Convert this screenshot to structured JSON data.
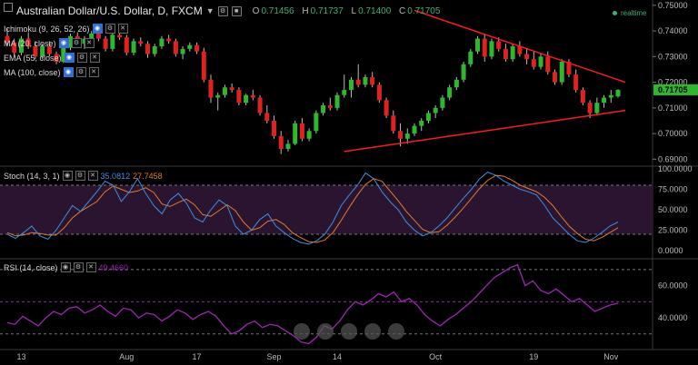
{
  "header": {
    "symbol_title": "Australian Dollar/U.S. Dollar, D, FXCM",
    "open_label": "O",
    "open": "0.71456",
    "high_label": "H",
    "high": "0.71737",
    "low_label": "L",
    "low": "0.71400",
    "close_label": "C",
    "close": "0.71705",
    "realtime": "realtime"
  },
  "indicators": {
    "ichimoku": "Ichimoku (9, 26, 52, 26)",
    "ma20": "MA (20, close)",
    "ema55": "EMA (55, close)",
    "ma100": "MA (100, close)"
  },
  "price_axis": {
    "ticks": [
      "0.75000",
      "0.74000",
      "0.73000",
      "0.72000",
      "0.71000",
      "0.70000",
      "0.69000"
    ],
    "last_price": "0.71705"
  },
  "stoch": {
    "label": "Stoch (14, 3, 1)",
    "k": "35.0812",
    "d": "27.7458",
    "ticks": [
      "100.0000",
      "75.0000",
      "50.0000",
      "25.0000",
      "0.0000"
    ]
  },
  "rsi": {
    "label": "RSI (14, close)",
    "value": "49.4660",
    "ticks": [
      "60.0000",
      "40.0000"
    ]
  },
  "time_axis": [
    "13",
    "Aug",
    "17",
    "Sep",
    "14",
    "Oct",
    "19",
    "Nov"
  ],
  "colors": {
    "up": "#2db82d",
    "down": "#e0221f",
    "trendline": "#ff1a1a",
    "stoch_k": "#3e8ee0",
    "stoch_d": "#e07b2a",
    "rsi": "#9c27b0",
    "stoch_band": "#2a1430"
  },
  "chart_data": {
    "type": "candlestick",
    "title": "Australian Dollar/U.S. Dollar, D, FXCM",
    "ylim": [
      0.688,
      0.751
    ],
    "candles": [
      [
        0.738,
        0.741,
        0.734,
        0.7355
      ],
      [
        0.7355,
        0.737,
        0.73,
        0.7315
      ],
      [
        0.7315,
        0.738,
        0.7305,
        0.737
      ],
      [
        0.737,
        0.7395,
        0.733,
        0.734
      ],
      [
        0.734,
        0.736,
        0.729,
        0.73
      ],
      [
        0.73,
        0.735,
        0.729,
        0.734
      ],
      [
        0.734,
        0.736,
        0.73,
        0.731
      ],
      [
        0.731,
        0.732,
        0.727,
        0.728
      ],
      [
        0.728,
        0.7345,
        0.7275,
        0.7335
      ],
      [
        0.7335,
        0.739,
        0.7325,
        0.738
      ],
      [
        0.738,
        0.7395,
        0.734,
        0.735
      ],
      [
        0.735,
        0.738,
        0.733,
        0.737
      ],
      [
        0.737,
        0.74,
        0.735,
        0.739
      ],
      [
        0.739,
        0.74,
        0.736,
        0.737
      ],
      [
        0.737,
        0.738,
        0.732,
        0.733
      ],
      [
        0.733,
        0.739,
        0.732,
        0.7385
      ],
      [
        0.7385,
        0.74,
        0.7365,
        0.7375
      ],
      [
        0.7375,
        0.7385,
        0.7305,
        0.7315
      ],
      [
        0.7315,
        0.737,
        0.7305,
        0.736
      ],
      [
        0.736,
        0.7375,
        0.734,
        0.735
      ],
      [
        0.735,
        0.736,
        0.7295,
        0.731
      ],
      [
        0.731,
        0.735,
        0.73,
        0.734
      ],
      [
        0.734,
        0.738,
        0.733,
        0.737
      ],
      [
        0.737,
        0.7385,
        0.735,
        0.736
      ],
      [
        0.736,
        0.737,
        0.73,
        0.731
      ],
      [
        0.731,
        0.734,
        0.729,
        0.733
      ],
      [
        0.733,
        0.7355,
        0.732,
        0.7345
      ],
      [
        0.7345,
        0.7355,
        0.731,
        0.732
      ],
      [
        0.732,
        0.7335,
        0.72,
        0.721
      ],
      [
        0.721,
        0.723,
        0.712,
        0.714
      ],
      [
        0.714,
        0.716,
        0.709,
        0.715
      ],
      [
        0.715,
        0.719,
        0.714,
        0.718
      ],
      [
        0.718,
        0.7195,
        0.716,
        0.717
      ],
      [
        0.717,
        0.718,
        0.711,
        0.712
      ],
      [
        0.712,
        0.7155,
        0.711,
        0.715
      ],
      [
        0.715,
        0.717,
        0.713,
        0.714
      ],
      [
        0.714,
        0.715,
        0.707,
        0.708
      ],
      [
        0.708,
        0.711,
        0.704,
        0.705
      ],
      [
        0.705,
        0.707,
        0.698,
        0.699
      ],
      [
        0.699,
        0.701,
        0.692,
        0.694
      ],
      [
        0.694,
        0.6975,
        0.693,
        0.696
      ],
      [
        0.696,
        0.705,
        0.6955,
        0.704
      ],
      [
        0.704,
        0.706,
        0.697,
        0.698
      ],
      [
        0.698,
        0.702,
        0.697,
        0.701
      ],
      [
        0.701,
        0.709,
        0.7,
        0.708
      ],
      [
        0.708,
        0.712,
        0.707,
        0.711
      ],
      [
        0.711,
        0.714,
        0.709,
        0.71
      ],
      [
        0.71,
        0.716,
        0.709,
        0.715
      ],
      [
        0.715,
        0.723,
        0.714,
        0.717
      ],
      [
        0.717,
        0.722,
        0.714,
        0.721
      ],
      [
        0.721,
        0.727,
        0.718,
        0.719
      ],
      [
        0.719,
        0.723,
        0.718,
        0.722
      ],
      [
        0.722,
        0.724,
        0.718,
        0.719
      ],
      [
        0.719,
        0.72,
        0.712,
        0.713
      ],
      [
        0.713,
        0.714,
        0.706,
        0.707
      ],
      [
        0.707,
        0.709,
        0.7,
        0.701
      ],
      [
        0.701,
        0.704,
        0.695,
        0.698
      ],
      [
        0.698,
        0.702,
        0.696,
        0.7
      ],
      [
        0.7,
        0.704,
        0.699,
        0.703
      ],
      [
        0.703,
        0.706,
        0.701,
        0.705
      ],
      [
        0.705,
        0.709,
        0.704,
        0.708
      ],
      [
        0.708,
        0.711,
        0.706,
        0.71
      ],
      [
        0.71,
        0.715,
        0.709,
        0.714
      ],
      [
        0.714,
        0.719,
        0.713,
        0.718
      ],
      [
        0.718,
        0.722,
        0.717,
        0.721
      ],
      [
        0.721,
        0.728,
        0.72,
        0.727
      ],
      [
        0.727,
        0.733,
        0.726,
        0.732
      ],
      [
        0.732,
        0.738,
        0.731,
        0.737
      ],
      [
        0.737,
        0.739,
        0.728,
        0.73
      ],
      [
        0.73,
        0.737,
        0.729,
        0.736
      ],
      [
        0.736,
        0.7375,
        0.732,
        0.733
      ],
      [
        0.733,
        0.735,
        0.728,
        0.729
      ],
      [
        0.729,
        0.735,
        0.728,
        0.734
      ],
      [
        0.734,
        0.736,
        0.73,
        0.731
      ],
      [
        0.731,
        0.733,
        0.727,
        0.729
      ],
      [
        0.729,
        0.732,
        0.725,
        0.726
      ],
      [
        0.726,
        0.731,
        0.725,
        0.73
      ],
      [
        0.73,
        0.732,
        0.723,
        0.724
      ],
      [
        0.724,
        0.725,
        0.719,
        0.72
      ],
      [
        0.72,
        0.729,
        0.719,
        0.728
      ],
      [
        0.728,
        0.729,
        0.722,
        0.723
      ],
      [
        0.723,
        0.725,
        0.716,
        0.717
      ],
      [
        0.717,
        0.718,
        0.711,
        0.712
      ],
      [
        0.712,
        0.713,
        0.706,
        0.708
      ],
      [
        0.708,
        0.714,
        0.707,
        0.712
      ],
      [
        0.712,
        0.715,
        0.71,
        0.714
      ],
      [
        0.714,
        0.717,
        0.712,
        0.715
      ],
      [
        0.7145,
        0.7173,
        0.714,
        0.717
      ]
    ],
    "trendlines": [
      {
        "from": [
          48,
          0.693
        ],
        "to": [
          87,
          0.709
        ]
      },
      {
        "from": [
          58,
          0.748
        ],
        "to": [
          87,
          0.72
        ]
      }
    ],
    "stoch_k": [
      20,
      15,
      22,
      30,
      18,
      14,
      25,
      40,
      55,
      48,
      60,
      72,
      85,
      80,
      60,
      72,
      88,
      70,
      55,
      45,
      62,
      70,
      58,
      40,
      35,
      50,
      62,
      55,
      30,
      20,
      25,
      38,
      45,
      30,
      22,
      15,
      10,
      8,
      12,
      20,
      35,
      55,
      68,
      80,
      95,
      88,
      72,
      60,
      50,
      35,
      25,
      18,
      22,
      30,
      40,
      52,
      64,
      75,
      88,
      96,
      92,
      85,
      80,
      75,
      72,
      68,
      55,
      40,
      30,
      20,
      12,
      10,
      15,
      22,
      30,
      35
    ],
    "stoch_d": [
      22,
      18,
      19,
      22,
      21,
      19,
      19,
      28,
      40,
      48,
      54,
      60,
      72,
      79,
      75,
      71,
      73,
      77,
      71,
      57,
      54,
      59,
      63,
      56,
      44,
      42,
      49,
      56,
      49,
      35,
      25,
      28,
      36,
      38,
      32,
      22,
      16,
      11,
      10,
      13,
      22,
      37,
      53,
      68,
      81,
      88,
      85,
      73,
      61,
      48,
      37,
      26,
      22,
      23,
      31,
      41,
      52,
      64,
      76,
      86,
      92,
      91,
      86,
      80,
      76,
      72,
      65,
      55,
      42,
      30,
      21,
      14,
      12,
      16,
      22,
      28
    ],
    "rsi_values": [
      37,
      36,
      41,
      38,
      35,
      40,
      44,
      42,
      46,
      47,
      43,
      45,
      48,
      44,
      41,
      46,
      45,
      40,
      43,
      42,
      38,
      41,
      45,
      43,
      39,
      42,
      44,
      41,
      35,
      30,
      32,
      36,
      38,
      34,
      36,
      35,
      32,
      29,
      25,
      24,
      28,
      35,
      33,
      38,
      45,
      50,
      48,
      51,
      55,
      53,
      56,
      50,
      52,
      48,
      42,
      38,
      35,
      39,
      42,
      46,
      50,
      55,
      60,
      65,
      68,
      71,
      73,
      60,
      63,
      57,
      55,
      58,
      54,
      50,
      52,
      48,
      44,
      46,
      48,
      49
    ]
  }
}
